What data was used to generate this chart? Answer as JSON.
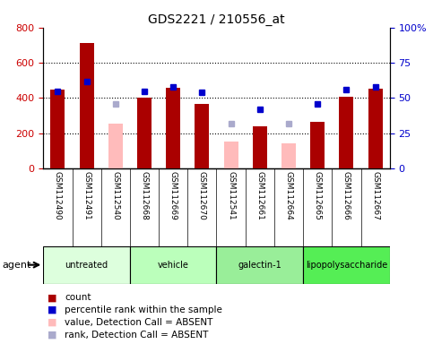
{
  "title": "GDS2221 / 210556_at",
  "samples": [
    "GSM112490",
    "GSM112491",
    "GSM112540",
    "GSM112668",
    "GSM112669",
    "GSM112670",
    "GSM112541",
    "GSM112661",
    "GSM112664",
    "GSM112665",
    "GSM112666",
    "GSM112667"
  ],
  "count_present": [
    450,
    710,
    null,
    400,
    460,
    365,
    null,
    240,
    null,
    265,
    405,
    455
  ],
  "count_absent": [
    null,
    null,
    255,
    null,
    null,
    null,
    155,
    null,
    145,
    null,
    null,
    null
  ],
  "rank_present_pct": [
    55,
    62,
    null,
    55,
    58,
    54,
    null,
    42,
    null,
    46,
    56,
    58
  ],
  "rank_absent_pct": [
    null,
    null,
    46,
    null,
    null,
    null,
    32,
    null,
    32,
    null,
    null,
    null
  ],
  "groups": [
    {
      "label": "untreated",
      "start": 0,
      "end": 3,
      "color": "#ddffdd"
    },
    {
      "label": "vehicle",
      "start": 3,
      "end": 6,
      "color": "#bbffbb"
    },
    {
      "label": "galectin-1",
      "start": 6,
      "end": 9,
      "color": "#99ee99"
    },
    {
      "label": "lipopolysaccharide",
      "start": 9,
      "end": 12,
      "color": "#55ee55"
    }
  ],
  "ylim_left": [
    0,
    800
  ],
  "ylim_right": [
    0,
    100
  ],
  "yticks_left": [
    0,
    200,
    400,
    600,
    800
  ],
  "yticks_right": [
    0,
    25,
    50,
    75,
    100
  ],
  "ytick_labels_right": [
    "0",
    "25",
    "50",
    "75",
    "100%"
  ],
  "bar_width": 0.5,
  "count_color_present": "#aa0000",
  "count_color_absent": "#ffbbbb",
  "rank_color_present": "#0000cc",
  "rank_color_absent": "#aaaacc",
  "grid_color": "black",
  "bg_color": "#ffffff",
  "tick_area_color": "#cccccc",
  "figsize": [
    4.83,
    3.84
  ],
  "dpi": 100,
  "left_label_color": "#cc0000",
  "right_label_color": "#0000cc"
}
